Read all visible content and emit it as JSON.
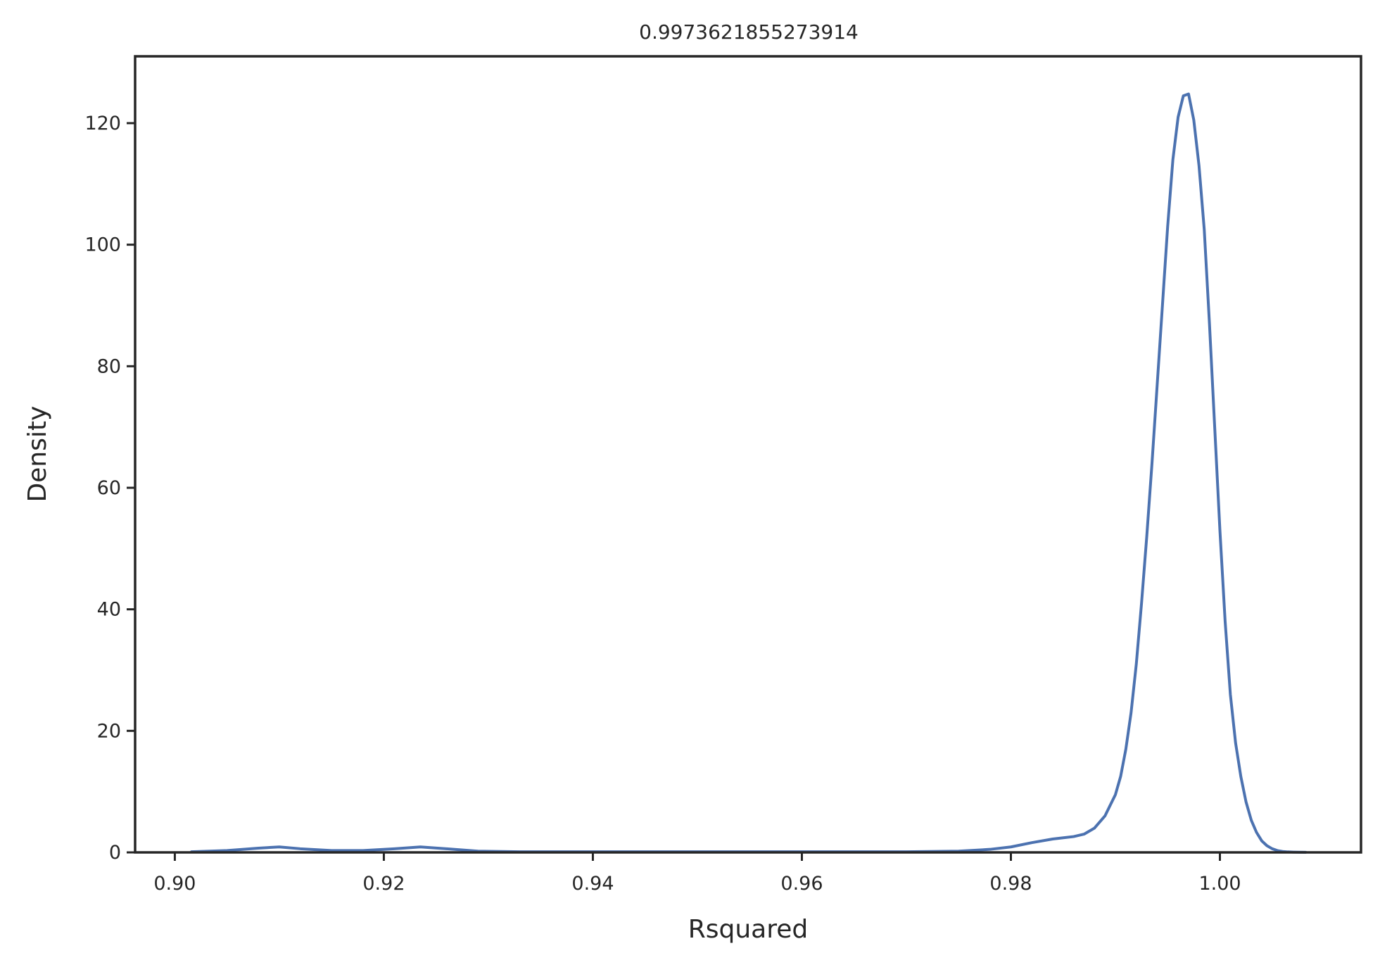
{
  "chart_data": {
    "type": "line",
    "title": "0.9973621855273914",
    "xlabel": "Rsquared",
    "ylabel": "Density",
    "xlim": [
      0.8962,
      1.0135
    ],
    "ylim": [
      0,
      131
    ],
    "x_ticks": [
      0.9,
      0.92,
      0.94,
      0.96,
      0.98,
      1.0
    ],
    "x_tick_labels": [
      "0.90",
      "0.92",
      "0.94",
      "0.96",
      "0.98",
      "1.00"
    ],
    "y_ticks": [
      0,
      20,
      40,
      60,
      80,
      100,
      120
    ],
    "y_tick_labels": [
      "0",
      "20",
      "40",
      "60",
      "80",
      "100",
      "120"
    ],
    "grid": false,
    "line_color": "#4c72b0",
    "series": [
      {
        "x": [
          0.9016,
          0.905,
          0.908,
          0.91,
          0.912,
          0.915,
          0.918,
          0.921,
          0.9235,
          0.926,
          0.929,
          0.933,
          0.94,
          0.95,
          0.96,
          0.97,
          0.975,
          0.978,
          0.98,
          0.982,
          0.984,
          0.986,
          0.987,
          0.988,
          0.989,
          0.99,
          0.9905,
          0.991,
          0.9915,
          0.992,
          0.9925,
          0.993,
          0.9935,
          0.994,
          0.9945,
          0.995,
          0.9955,
          0.996,
          0.9965,
          0.997,
          0.9975,
          0.998,
          0.9985,
          0.999,
          0.9995,
          1.0,
          1.0005,
          1.001,
          1.0015,
          1.002,
          1.0025,
          1.003,
          1.0035,
          1.004,
          1.0045,
          1.005,
          1.0055,
          1.006,
          1.0065,
          1.007,
          1.0075,
          1.0082
        ],
        "y": [
          0.1,
          0.3,
          0.7,
          0.9,
          0.6,
          0.3,
          0.3,
          0.6,
          0.9,
          0.6,
          0.2,
          0.1,
          0.1,
          0.1,
          0.1,
          0.1,
          0.2,
          0.5,
          0.9,
          1.6,
          2.2,
          2.6,
          3.0,
          4.0,
          6.0,
          9.5,
          12.5,
          17.0,
          23.0,
          31.0,
          41.0,
          52.0,
          64.0,
          77.0,
          90.0,
          103.0,
          114.0,
          121.0,
          124.5,
          124.8,
          120.5,
          113.0,
          102.5,
          87.0,
          70.0,
          53.0,
          38.0,
          26.0,
          18.0,
          12.5,
          8.3,
          5.3,
          3.3,
          1.9,
          1.1,
          0.6,
          0.3,
          0.15,
          0.08,
          0.05,
          0.03,
          0.02
        ]
      }
    ]
  }
}
